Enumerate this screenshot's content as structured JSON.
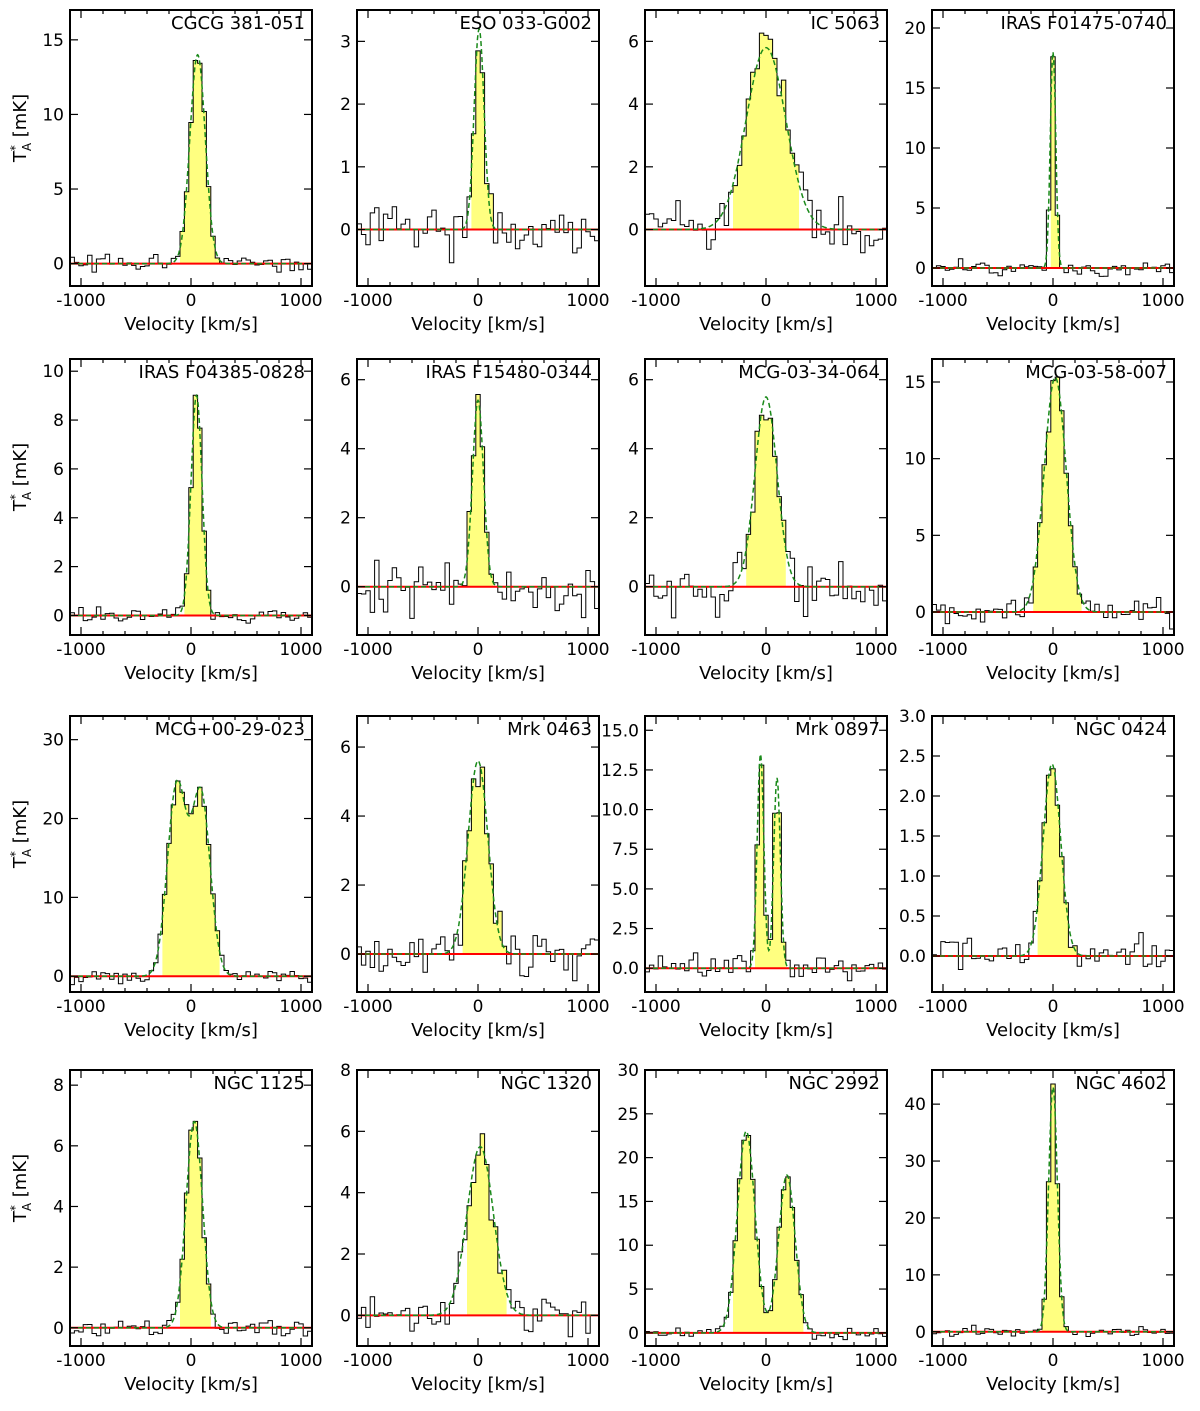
{
  "figure": {
    "x_tick_labels": [
      "-1000",
      "0",
      "1000"
    ]
  },
  "chart_data": [
    {
      "type": "line",
      "title": "CGCG 381-051",
      "xlabel": "Velocity [km/s]",
      "ylabel": "T*_A [mK]",
      "xlim": [
        -1100,
        1100
      ],
      "ylim": [
        -1.5,
        17
      ],
      "yticks": [
        0,
        5,
        10,
        15
      ],
      "ytick_labels": [
        "0",
        "5",
        "10",
        "15"
      ],
      "series": [
        {
          "name": "Gaussian fit",
          "peaks": [
            {
              "amp": 14,
              "center": 60,
              "sigma": 70
            }
          ]
        }
      ],
      "noise": 0.35,
      "line_width": [
        -100,
        230
      ],
      "seed": 1
    },
    {
      "type": "line",
      "title": "ESO 033-G002",
      "xlabel": "Velocity [km/s]",
      "ylabel": "T*_A [mK]",
      "xlim": [
        -1100,
        1100
      ],
      "ylim": [
        -0.9,
        3.5
      ],
      "yticks": [
        0,
        1,
        2,
        3
      ],
      "ytick_labels": [
        "0",
        "1",
        "2",
        "3"
      ],
      "series": [
        {
          "name": "Gaussian fit",
          "peaks": [
            {
              "amp": 3.2,
              "center": 10,
              "sigma": 45
            }
          ]
        }
      ],
      "noise": 0.35,
      "line_width": [
        -60,
        120
      ],
      "seed": 2
    },
    {
      "type": "line",
      "title": "IC 5063",
      "xlabel": "Velocity [km/s]",
      "ylabel": "T*_A [mK]",
      "xlim": [
        -1100,
        1100
      ],
      "ylim": [
        -1.8,
        7
      ],
      "yticks": [
        0,
        2,
        4,
        6
      ],
      "ytick_labels": [
        "0",
        "2",
        "4",
        "6"
      ],
      "series": [
        {
          "name": "Gaussian fit",
          "peaks": [
            {
              "amp": 5.8,
              "center": 0,
              "sigma": 180
            }
          ]
        }
      ],
      "noise": 0.55,
      "line_width": [
        -300,
        280
      ],
      "seed": 3
    },
    {
      "type": "line",
      "title": "IRAS F01475-0740",
      "xlabel": "Velocity [km/s]",
      "ylabel": "T*_A [mK]",
      "xlim": [
        -1100,
        1100
      ],
      "ylim": [
        -1.5,
        21.5
      ],
      "yticks": [
        0,
        5,
        10,
        15,
        20
      ],
      "ytick_labels": [
        "0",
        "5",
        "10",
        "15",
        "20"
      ],
      "series": [
        {
          "name": "Gaussian fit",
          "peaks": [
            {
              "amp": 18,
              "center": 0,
              "sigma": 25
            }
          ]
        }
      ],
      "noise": 0.4,
      "line_width": [
        -40,
        50
      ],
      "seed": 4
    },
    {
      "type": "line",
      "title": "IRAS F04385-0828",
      "xlabel": "Velocity [km/s]",
      "ylabel": "T*_A [mK]",
      "xlim": [
        -1100,
        1100
      ],
      "ylim": [
        -0.8,
        10.5
      ],
      "yticks": [
        0,
        2,
        4,
        6,
        8,
        10
      ],
      "ytick_labels": [
        "0",
        "2",
        "4",
        "6",
        "8",
        "10"
      ],
      "series": [
        {
          "name": "Gaussian fit",
          "peaks": [
            {
              "amp": 9,
              "center": 50,
              "sigma": 50
            }
          ]
        }
      ],
      "noise": 0.2,
      "line_width": [
        -60,
        160
      ],
      "seed": 5
    },
    {
      "type": "line",
      "title": "IRAS F15480-0344",
      "xlabel": "Velocity [km/s]",
      "ylabel": "T*_A [mK]",
      "xlim": [
        -1100,
        1100
      ],
      "ylim": [
        -1.4,
        6.6
      ],
      "yticks": [
        0,
        2,
        4,
        6
      ],
      "ytick_labels": [
        "0",
        "2",
        "4",
        "6"
      ],
      "series": [
        {
          "name": "Gaussian fit",
          "peaks": [
            {
              "amp": 5.4,
              "center": 0,
              "sigma": 50
            }
          ]
        }
      ],
      "noise": 0.45,
      "line_width": [
        -100,
        120
      ],
      "seed": 6
    },
    {
      "type": "line",
      "title": "MCG-03-34-064",
      "xlabel": "Velocity [km/s]",
      "ylabel": "T*_A [mK]",
      "xlim": [
        -1100,
        1100
      ],
      "ylim": [
        -1.4,
        6.6
      ],
      "yticks": [
        0,
        2,
        4,
        6
      ],
      "ytick_labels": [
        "0",
        "2",
        "4",
        "6"
      ],
      "series": [
        {
          "name": "Gaussian fit",
          "peaks": [
            {
              "amp": 5.5,
              "center": 0,
              "sigma": 100
            }
          ]
        }
      ],
      "noise": 0.5,
      "line_width": [
        -180,
        150
      ],
      "seed": 7
    },
    {
      "type": "line",
      "title": "MCG-03-58-007",
      "xlabel": "Velocity [km/s]",
      "ylabel": "T*_A [mK]",
      "xlim": [
        -1100,
        1100
      ],
      "ylim": [
        -1.5,
        16.5
      ],
      "yticks": [
        0,
        5,
        10,
        15
      ],
      "ytick_labels": [
        "0",
        "5",
        "10",
        "15"
      ],
      "series": [
        {
          "name": "Gaussian fit",
          "peaks": [
            {
              "amp": 15.3,
              "center": 20,
              "sigma": 100
            }
          ]
        }
      ],
      "noise": 0.6,
      "line_width": [
        -200,
        230
      ],
      "seed": 8
    },
    {
      "type": "line",
      "title": "MCG+00-29-023",
      "xlabel": "Velocity [km/s]",
      "ylabel": "T*_A [mK]",
      "xlim": [
        -1100,
        1100
      ],
      "ylim": [
        -2,
        33
      ],
      "yticks": [
        0,
        10,
        20,
        30
      ],
      "ytick_labels": [
        "0",
        "10",
        "20",
        "30"
      ],
      "series": [
        {
          "name": "Gaussian fit",
          "peaks": [
            {
              "amp": 24,
              "center": -130,
              "sigma": 85
            },
            {
              "amp": 23,
              "center": 90,
              "sigma": 85
            }
          ]
        }
      ],
      "noise": 0.6,
      "line_width": [
        -270,
        220
      ],
      "seed": 9
    },
    {
      "type": "line",
      "title": "Mrk 0463",
      "xlabel": "Velocity [km/s]",
      "ylabel": "T*_A [mK]",
      "xlim": [
        -1100,
        1100
      ],
      "ylim": [
        -1.1,
        6.9
      ],
      "yticks": [
        0,
        2,
        4,
        6
      ],
      "ytick_labels": [
        "0",
        "2",
        "4",
        "6"
      ],
      "series": [
        {
          "name": "Gaussian fit",
          "peaks": [
            {
              "amp": 5.6,
              "center": 0,
              "sigma": 90
            }
          ]
        }
      ],
      "noise": 0.45,
      "line_width": [
        -150,
        250
      ],
      "seed": 10
    },
    {
      "type": "line",
      "title": "Mrk 0897",
      "xlabel": "Velocity [km/s]",
      "ylabel": "T*_A [mK]",
      "xlim": [
        -1100,
        1100
      ],
      "ylim": [
        -1.5,
        15.9
      ],
      "yticks": [
        0,
        2.5,
        5,
        7.5,
        10,
        12.5,
        15
      ],
      "ytick_labels": [
        "0.0",
        "2.5",
        "5.0",
        "7.5",
        "10.0",
        "12.5",
        "15.0"
      ],
      "series": [
        {
          "name": "Gaussian fit",
          "peaks": [
            {
              "amp": 13.5,
              "center": -50,
              "sigma": 30
            },
            {
              "amp": 12,
              "center": 100,
              "sigma": 30
            }
          ]
        }
      ],
      "noise": 0.45,
      "line_width": [
        -100,
        150
      ],
      "seed": 11
    },
    {
      "type": "line",
      "title": "NGC 0424",
      "xlabel": "Velocity [km/s]",
      "ylabel": "T*_A [mK]",
      "xlim": [
        -1100,
        1100
      ],
      "ylim": [
        -0.45,
        3.0
      ],
      "yticks": [
        0,
        0.5,
        1,
        1.5,
        2,
        2.5,
        3
      ],
      "ytick_labels": [
        "0.0",
        "0.5",
        "1.0",
        "1.5",
        "2.0",
        "2.5",
        "3.0"
      ],
      "series": [
        {
          "name": "Gaussian fit",
          "peaks": [
            {
              "amp": 2.4,
              "center": -10,
              "sigma": 80
            }
          ]
        }
      ],
      "noise": 0.15,
      "line_width": [
        -150,
        200
      ],
      "seed": 12
    },
    {
      "type": "line",
      "title": "NGC 1125",
      "xlabel": "Velocity [km/s]",
      "ylabel": "T*_A [mK]",
      "xlim": [
        -1100,
        1100
      ],
      "ylim": [
        -0.6,
        8.5
      ],
      "yticks": [
        0,
        2,
        4,
        6,
        8
      ],
      "ytick_labels": [
        "0",
        "2",
        "4",
        "6",
        "8"
      ],
      "series": [
        {
          "name": "Gaussian fit",
          "peaks": [
            {
              "amp": 6.8,
              "center": 30,
              "sigma": 75
            }
          ]
        }
      ],
      "noise": 0.2,
      "line_width": [
        -100,
        150
      ],
      "seed": 13
    },
    {
      "type": "line",
      "title": "NGC 1320",
      "xlabel": "Velocity [km/s]",
      "ylabel": "T*_A [mK]",
      "xlim": [
        -1100,
        1100
      ],
      "ylim": [
        -1.0,
        8.0
      ],
      "yticks": [
        0,
        2,
        4,
        6,
        8
      ],
      "ytick_labels": [
        "0",
        "2",
        "4",
        "6",
        "8"
      ],
      "series": [
        {
          "name": "Gaussian fit",
          "peaks": [
            {
              "amp": 5.5,
              "center": 20,
              "sigma": 120
            }
          ]
        }
      ],
      "noise": 0.4,
      "line_width": [
        -100,
        250
      ],
      "seed": 14
    },
    {
      "type": "line",
      "title": "NGC 2992",
      "xlabel": "Velocity [km/s]",
      "ylabel": "T*_A [mK]",
      "xlim": [
        -1100,
        1100
      ],
      "ylim": [
        -1.5,
        30
      ],
      "yticks": [
        0,
        5,
        10,
        15,
        20,
        25,
        30
      ],
      "ytick_labels": [
        "0",
        "5",
        "10",
        "15",
        "20",
        "25",
        "30"
      ],
      "series": [
        {
          "name": "Gaussian fit",
          "peaks": [
            {
              "amp": 23,
              "center": -180,
              "sigma": 80
            },
            {
              "amp": 18,
              "center": 190,
              "sigma": 75
            }
          ]
        }
      ],
      "noise": 0.4,
      "line_width": [
        -300,
        300
      ],
      "seed": 15
    },
    {
      "type": "line",
      "title": "NGC 4602",
      "xlabel": "Velocity [km/s]",
      "ylabel": "T*_A [mK]",
      "xlim": [
        -1100,
        1100
      ],
      "ylim": [
        -2.5,
        46
      ],
      "yticks": [
        0,
        10,
        20,
        30,
        40
      ],
      "ytick_labels": [
        "0",
        "10",
        "20",
        "30",
        "40"
      ],
      "series": [
        {
          "name": "Gaussian fit",
          "peaks": [
            {
              "amp": 43,
              "center": 0,
              "sigma": 40
            }
          ]
        }
      ],
      "noise": 0.6,
      "line_width": [
        -100,
        130
      ],
      "seed": 16
    }
  ]
}
